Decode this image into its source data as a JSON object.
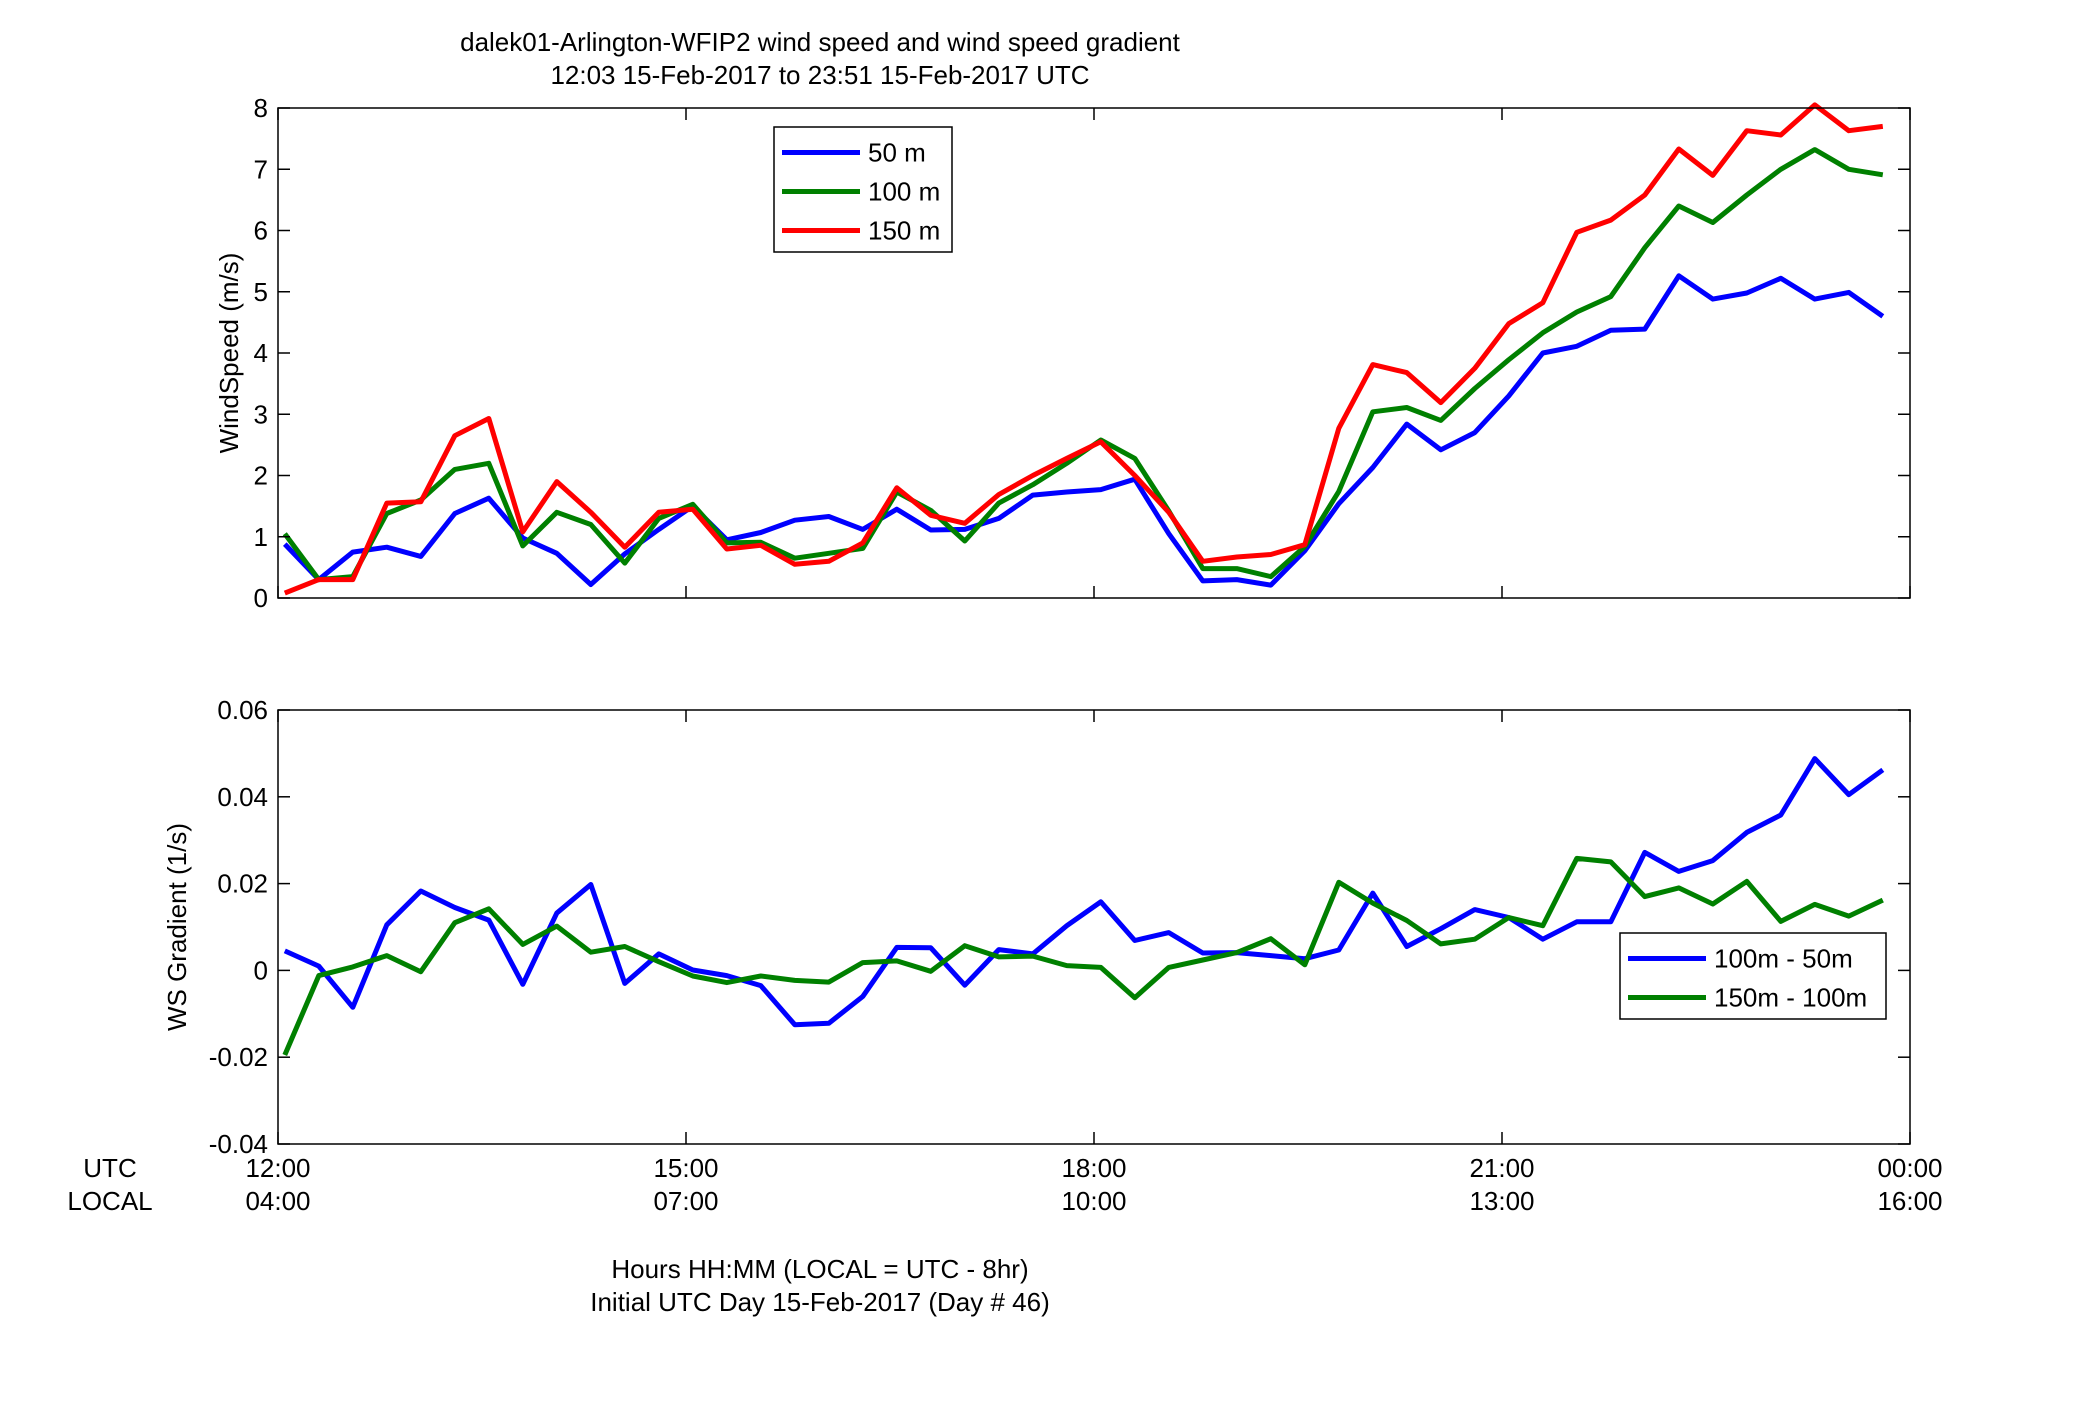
{
  "figure": {
    "title_line1": "dalek01-Arlington-WFIP2  wind speed and wind speed gradient",
    "title_line2": "12:03 15-Feb-2017 to 23:51 15-Feb-2017  UTC",
    "xlabel_line1": "Hours HH:MM  (LOCAL = UTC - 8hr)",
    "xlabel_line2": "Initial UTC Day 15-Feb-2017 (Day # 46)",
    "row_label_utc": "UTC",
    "row_label_local": "LOCAL",
    "x_ticks_utc": [
      "12:00",
      "15:00",
      "18:00",
      "21:00",
      "00:00"
    ],
    "x_ticks_local": [
      "04:00",
      "07:00",
      "10:00",
      "13:00",
      "16:00"
    ]
  },
  "chart_data": [
    {
      "type": "line",
      "title": "dalek01-Arlington-WFIP2  wind speed and wind speed gradient",
      "subtitle": "12:03 15-Feb-2017 to 23:51 15-Feb-2017  UTC",
      "ylabel": "WindSpeed (m/s)",
      "xlabel": "Hours HH:MM  (LOCAL = UTC - 8hr)",
      "xlim": [
        12,
        24
      ],
      "ylim": [
        0,
        8
      ],
      "yticks": [
        "0",
        "1",
        "2",
        "3",
        "4",
        "5",
        "6",
        "7",
        "8"
      ],
      "grid": false,
      "legend_position": "top-center",
      "x": [
        12.05,
        12.3,
        12.55,
        12.8,
        13.05,
        13.3,
        13.55,
        13.8,
        14.05,
        14.3,
        14.55,
        14.8,
        15.05,
        15.3,
        15.55,
        15.8,
        16.05,
        16.3,
        16.55,
        16.8,
        17.05,
        17.3,
        17.55,
        17.8,
        18.05,
        18.3,
        18.55,
        18.8,
        19.05,
        19.3,
        19.55,
        19.8,
        20.05,
        20.3,
        20.55,
        20.8,
        21.05,
        21.3,
        21.55,
        21.8,
        22.05,
        22.3,
        22.55,
        22.8,
        23.05,
        23.3,
        23.55,
        23.8
      ],
      "series": [
        {
          "name": "50 m",
          "color": "#0000ff",
          "values": [
            0.88,
            0.3,
            0.75,
            0.83,
            0.68,
            1.38,
            1.63,
            0.98,
            0.73,
            0.22,
            0.72,
            1.12,
            1.5,
            0.95,
            1.07,
            1.27,
            1.33,
            1.12,
            1.45,
            1.11,
            1.12,
            1.3,
            1.68,
            1.73,
            1.77,
            1.94,
            1.05,
            0.28,
            0.3,
            0.21,
            0.77,
            1.54,
            2.13,
            2.84,
            2.42,
            2.7,
            3.3,
            4.0,
            4.11,
            4.37,
            4.39,
            5.26,
            4.88,
            4.98,
            5.22,
            4.88,
            4.99,
            4.6
          ]
        },
        {
          "name": "100 m",
          "color": "#008000",
          "values": [
            1.05,
            0.3,
            0.35,
            1.38,
            1.6,
            2.1,
            2.2,
            0.85,
            1.4,
            1.2,
            0.57,
            1.3,
            1.53,
            0.9,
            0.91,
            0.65,
            0.73,
            0.81,
            1.73,
            1.43,
            0.93,
            1.55,
            1.85,
            2.2,
            2.58,
            2.28,
            1.42,
            0.48,
            0.48,
            0.35,
            0.84,
            1.74,
            3.04,
            3.11,
            2.9,
            3.42,
            3.89,
            4.33,
            4.67,
            4.92,
            5.72,
            6.4,
            6.13,
            6.58,
            7.0,
            7.32,
            7.0,
            6.91
          ]
        },
        {
          "name": "150 m",
          "color": "#ff0000",
          "values": [
            0.08,
            0.3,
            0.3,
            1.55,
            1.57,
            2.65,
            2.93,
            1.08,
            1.9,
            1.4,
            0.83,
            1.4,
            1.45,
            0.8,
            0.86,
            0.55,
            0.6,
            0.9,
            1.8,
            1.35,
            1.22,
            1.69,
            2.0,
            2.28,
            2.55,
            2.0,
            1.4,
            0.6,
            0.67,
            0.71,
            0.87,
            2.77,
            3.81,
            3.68,
            3.19,
            3.75,
            4.48,
            4.82,
            5.97,
            6.17,
            6.58,
            7.33,
            6.9,
            7.63,
            7.56,
            8.05,
            7.63,
            7.7
          ]
        }
      ]
    },
    {
      "type": "line",
      "ylabel": "WS Gradient (1/s)",
      "xlabel": "Hours HH:MM  (LOCAL = UTC - 8hr)",
      "xlim": [
        12,
        24
      ],
      "ylim": [
        -0.04,
        0.06
      ],
      "yticks": [
        "-0.04",
        "-0.02",
        "0",
        "0.02",
        "0.04",
        "0.06"
      ],
      "grid": false,
      "legend_position": "bottom-right",
      "x": [
        12.05,
        12.3,
        12.55,
        12.8,
        13.05,
        13.3,
        13.55,
        13.8,
        14.05,
        14.3,
        14.55,
        14.8,
        15.05,
        15.3,
        15.55,
        15.8,
        16.05,
        16.3,
        16.55,
        16.8,
        17.05,
        17.3,
        17.55,
        17.8,
        18.05,
        18.3,
        18.55,
        18.8,
        19.05,
        19.3,
        19.55,
        19.8,
        20.05,
        20.3,
        20.55,
        20.8,
        21.05,
        21.3,
        21.55,
        21.8,
        22.05,
        22.3,
        22.55,
        22.8,
        23.05,
        23.3,
        23.55,
        23.8
      ],
      "series": [
        {
          "name": "100m - 50m",
          "color": "#0000ff",
          "values": [
            0.0045,
            0.001,
            -0.0085,
            0.0105,
            0.0183,
            0.0145,
            0.0116,
            -0.0032,
            0.0132,
            0.0198,
            -0.003,
            0.0038,
            0.0001,
            -0.0012,
            -0.0035,
            -0.0125,
            -0.0122,
            -0.006,
            0.0053,
            0.0052,
            -0.0034,
            0.0048,
            0.0038,
            0.0103,
            0.0158,
            0.0069,
            0.0087,
            0.004,
            0.0041,
            0.0034,
            0.0027,
            0.0047,
            0.0178,
            0.0055,
            0.0096,
            0.014,
            0.0122,
            0.0072,
            0.0112,
            0.0112,
            0.0272,
            0.0228,
            0.0253,
            0.0318,
            0.0358,
            0.0488,
            0.0405,
            0.0462
          ]
        },
        {
          "name": "150m - 100m",
          "color": "#008000",
          "values": [
            -0.0195,
            -0.0012,
            0.0008,
            0.0034,
            -0.0003,
            0.011,
            0.0142,
            0.006,
            0.0102,
            0.0042,
            0.0055,
            0.002,
            -0.0013,
            -0.0028,
            -0.0013,
            -0.0023,
            -0.0027,
            0.0018,
            0.0022,
            -0.0002,
            0.0057,
            0.0031,
            0.0033,
            0.0011,
            0.0007,
            -0.0063,
            0.0007,
            0.0024,
            0.0041,
            0.0073,
            0.0013,
            0.0203,
            0.0155,
            0.0115,
            0.0061,
            0.0072,
            0.0122,
            0.0103,
            0.0258,
            0.025,
            0.017,
            0.019,
            0.0153,
            0.0205,
            0.0113,
            0.0152,
            0.0125,
            0.0162
          ]
        }
      ]
    }
  ]
}
